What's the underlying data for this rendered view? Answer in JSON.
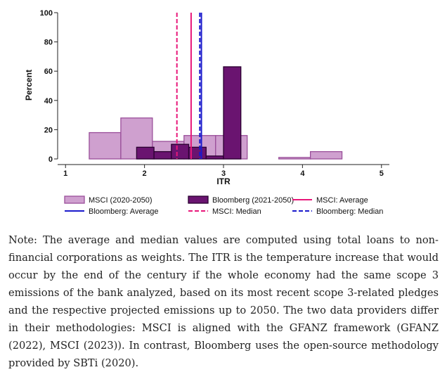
{
  "chart_data": {
    "type": "bar",
    "title": "",
    "xlabel": "ITR",
    "ylabel": "Percent",
    "xlim": [
      0.9,
      5.1
    ],
    "ylim": [
      0,
      100
    ],
    "xticks": [
      1,
      2,
      3,
      4,
      5
    ],
    "yticks": [
      0,
      20,
      40,
      60,
      80,
      100
    ],
    "grid": false,
    "legend_position": "bottom",
    "series": [
      {
        "name": "MSCI (2020-2050)",
        "fill": "#cfa0cf",
        "stroke": "#9a4f9a",
        "bins": [
          {
            "x0": 1.3,
            "x1": 1.7,
            "value": 18
          },
          {
            "x0": 1.7,
            "x1": 2.1,
            "value": 28
          },
          {
            "x0": 2.1,
            "x1": 2.5,
            "value": 12
          },
          {
            "x0": 2.5,
            "x1": 2.9,
            "value": 16
          },
          {
            "x0": 2.9,
            "x1": 3.3,
            "value": 16
          },
          {
            "x0": 3.3,
            "x1": 3.7,
            "value": 0
          },
          {
            "x0": 3.7,
            "x1": 4.1,
            "value": 1
          },
          {
            "x0": 4.1,
            "x1": 4.5,
            "value": 5
          }
        ]
      },
      {
        "name": "Bloomberg (2021-2050)",
        "fill": "#6a1470",
        "stroke": "#2a0030",
        "bins": [
          {
            "x0": 1.9,
            "x1": 2.12,
            "value": 8
          },
          {
            "x0": 2.12,
            "x1": 2.34,
            "value": 5
          },
          {
            "x0": 2.34,
            "x1": 2.56,
            "value": 10
          },
          {
            "x0": 2.56,
            "x1": 2.78,
            "value": 8
          },
          {
            "x0": 2.78,
            "x1": 3.0,
            "value": 2
          },
          {
            "x0": 3.0,
            "x1": 3.22,
            "value": 63
          }
        ]
      }
    ],
    "reference_lines": [
      {
        "name": "MSCI: Average",
        "x": 2.59,
        "color": "#e8177a",
        "style": "solid"
      },
      {
        "name": "Bloomberg: Average",
        "x": 2.72,
        "color": "#1a1acc",
        "style": "solid"
      },
      {
        "name": "MSCI: Median",
        "x": 2.41,
        "color": "#e8177a",
        "style": "dashed"
      },
      {
        "name": "Bloomberg: Median",
        "x": 2.7,
        "color": "#1a1acc",
        "style": "dashed"
      }
    ],
    "legend": [
      {
        "label": "MSCI (2020-2050)",
        "kind": "box",
        "fill": "#cfa0cf",
        "stroke": "#9a4f9a"
      },
      {
        "label": "Bloomberg (2021-2050)",
        "kind": "box",
        "fill": "#6a1470",
        "stroke": "#2a0030"
      },
      {
        "label": "MSCI: Average",
        "kind": "line",
        "color": "#e8177a",
        "style": "solid"
      },
      {
        "label": "Bloomberg: Average",
        "kind": "line",
        "color": "#1a1acc",
        "style": "solid"
      },
      {
        "label": "MSCI: Median",
        "kind": "line",
        "color": "#e8177a",
        "style": "dashed"
      },
      {
        "label": "Bloomberg: Median",
        "kind": "line",
        "color": "#1a1acc",
        "style": "dashed"
      }
    ]
  },
  "note": "Note: The average and median values are computed using total loans to non-financial corporations as weights. The ITR is the temperature increase that would occur by the end of the century if the whole economy had the same scope 3 emissions of the bank analyzed, based on its most recent scope 3-related pledges and the respective projected emissions up to 2050. The two data providers differ in their methodologies: MSCI is aligned with the GFANZ framework (GFANZ (2022), MSCI (2023)). In contrast, Bloomberg uses the open-source methodology provided by SBTi (2020)."
}
